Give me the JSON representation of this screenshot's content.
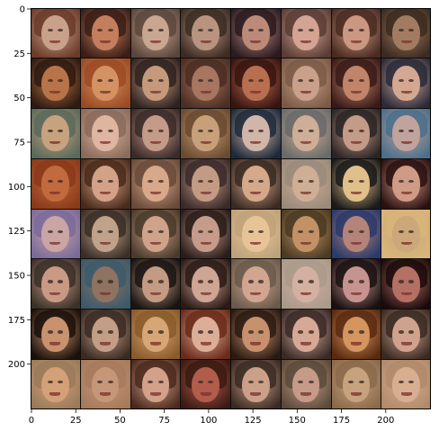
{
  "chart_data": {
    "type": "image",
    "title": "",
    "xlabel": "",
    "ylabel": "",
    "xlim": [
      -0.5,
      225.5
    ],
    "ylim": [
      225.5,
      -0.5
    ],
    "xticks": [
      0,
      25,
      50,
      75,
      100,
      125,
      150,
      175,
      200
    ],
    "yticks": [
      0,
      25,
      50,
      75,
      100,
      125,
      150,
      175,
      200
    ],
    "grid": false,
    "image_grid": {
      "rows": 8,
      "cols": 8,
      "content": "generated face samples",
      "tiles": [
        [
          [
            "#c9a08a",
            "#6b3b2a"
          ],
          [
            "#c47e5e",
            "#3a1d16"
          ],
          [
            "#c9a690",
            "#5a463c"
          ],
          [
            "#b89480",
            "#3b2b22"
          ],
          [
            "#bb8a78",
            "#2a1a20"
          ],
          [
            "#d3a493",
            "#5a3d35"
          ],
          [
            "#c99782",
            "#4a2b20"
          ],
          [
            "#a27b62",
            "#3b2a1f"
          ]
        ],
        [
          [
            "#b77448",
            "#2e1a10"
          ],
          [
            "#d49264",
            "#9c4a23"
          ],
          [
            "#c59a7c",
            "#2f2220"
          ],
          [
            "#a77560",
            "#4b2d22"
          ],
          [
            "#b86f50",
            "#3a1410"
          ],
          [
            "#c9a08a",
            "#7b5a45"
          ],
          [
            "#c0846a",
            "#3a1a18"
          ],
          [
            "#d3a892",
            "#2a2a3a"
          ]
        ],
        [
          [
            "#c7a27e",
            "#5a6a5a"
          ],
          [
            "#ddb5a0",
            "#8a6a5a"
          ],
          [
            "#c49a88",
            "#3a2a28"
          ],
          [
            "#c7a07a",
            "#6a4a30"
          ],
          [
            "#d1b5a9",
            "#1e2a3a"
          ],
          [
            "#cfae98",
            "#6a6a6a"
          ],
          [
            "#c49a88",
            "#2a2424"
          ],
          [
            "#bfa39c",
            "#4c6f8a"
          ]
        ],
        [
          [
            "#c06a3e",
            "#8a3a1a"
          ],
          [
            "#d2a188",
            "#4a2a1a"
          ],
          [
            "#d7a88a",
            "#6a4a3a"
          ],
          [
            "#c39b84",
            "#3a2a2a"
          ],
          [
            "#d4a88a",
            "#3a2a22"
          ],
          [
            "#cfae96",
            "#9a8a7a"
          ],
          [
            "#e0c08a",
            "#1a1a1a"
          ],
          [
            "#cf9a86",
            "#2a1010"
          ]
        ],
        [
          [
            "#c9a5a3",
            "#7a6a9a"
          ],
          [
            "#bfa28a",
            "#3a2e26"
          ],
          [
            "#cfa28a",
            "#4a3a2a"
          ],
          [
            "#c59c8a",
            "#2a1c1a"
          ],
          [
            "#e7c498",
            "#bfa27a"
          ],
          [
            "#c29166",
            "#4a3a22"
          ],
          [
            "#b5837a",
            "#2a3a6a"
          ],
          [
            "#cba779",
            "#d8b57a"
          ]
        ],
        [
          [
            "#c89a84",
            "#3a3028"
          ],
          [
            "#8e7262",
            "#3c5a6a"
          ],
          [
            "#c39a84",
            "#1a1412"
          ],
          [
            "#cfa594",
            "#2a1a16"
          ],
          [
            "#d1a590",
            "#6a5a4a"
          ],
          [
            "#d4b0a3",
            "#aa9a8a"
          ],
          [
            "#c59490",
            "#1a1010"
          ],
          [
            "#b47064",
            "#1a0a0a"
          ]
        ],
        [
          [
            "#c8926e",
            "#1a100a"
          ],
          [
            "#c39e86",
            "#3a2a22"
          ],
          [
            "#d7a675",
            "#8a5a2a"
          ],
          [
            "#dcae98",
            "#6a2a1a"
          ],
          [
            "#c8916e",
            "#2a1a12"
          ],
          [
            "#d5a996",
            "#3a2a26"
          ],
          [
            "#d4955e",
            "#5a2a10"
          ],
          [
            "#cfa28e",
            "#3a2a22"
          ]
        ],
        [
          [
            "#d4a078",
            "#9a7a5a"
          ],
          [
            "#c59778",
            "#a67a5a"
          ],
          [
            "#d3a08a",
            "#4a2a1e"
          ],
          [
            "#b15c4c",
            "#3a1a12"
          ],
          [
            "#caa088",
            "#3a2a22"
          ],
          [
            "#c69a88",
            "#5a4a3a"
          ],
          [
            "#c7a27e",
            "#8a6a4a"
          ],
          [
            "#d8ae90",
            "#b08a6a"
          ]
        ]
      ]
    }
  }
}
